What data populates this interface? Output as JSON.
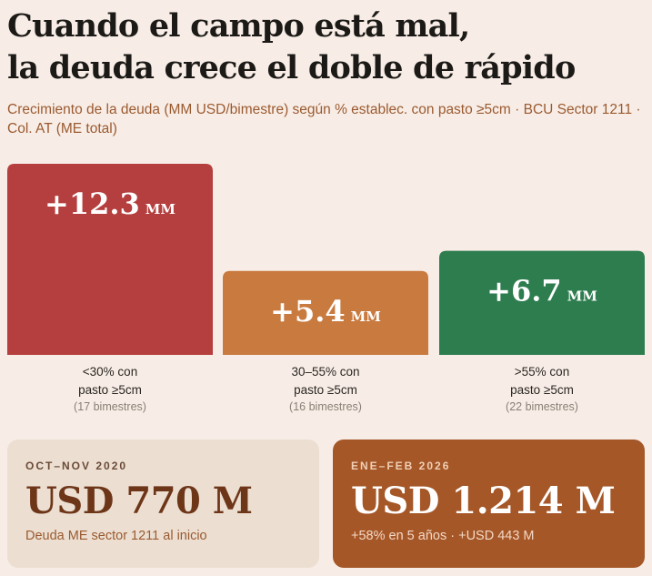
{
  "title_lines": [
    "Cuando el campo está mal,",
    "la deuda crece el doble de rápido"
  ],
  "subtitle": "Crecimiento de la deuda (MM USD/bimestre) según % establec. con pasto ≥5cm · BCU Sector 1211 · Col. AT (ME total)",
  "chart_data": {
    "type": "bar",
    "categories": [
      "<30% con pasto ≥5cm",
      "30–55% con pasto ≥5cm",
      ">55% con pasto ≥5cm"
    ],
    "category_lines": [
      [
        "<30% con",
        "pasto ≥5cm"
      ],
      [
        "30–55% con",
        "pasto ≥5cm"
      ],
      [
        ">55% con",
        "pasto ≥5cm"
      ]
    ],
    "counts": [
      "(17 bimestres)",
      "(16 bimestres)",
      "(22 bimestres)"
    ],
    "values": [
      12.3,
      5.4,
      6.7
    ],
    "value_labels": [
      "+12.3",
      "+5.4",
      "+6.7"
    ],
    "unit": "MM",
    "colors": [
      "#b53e3e",
      "#c97a3f",
      "#2e7d4f"
    ],
    "ylim": [
      0,
      12.3
    ],
    "grid": false,
    "legend": "none"
  },
  "cards": {
    "left": {
      "period": "OCT–NOV 2020",
      "value": "USD 770 M",
      "note": "Deuda ME sector 1211 al inicio"
    },
    "right": {
      "period": "ENE–FEB 2026",
      "value": "USD 1.214 M",
      "note": "+58% en 5 años · +USD 443 M"
    }
  }
}
